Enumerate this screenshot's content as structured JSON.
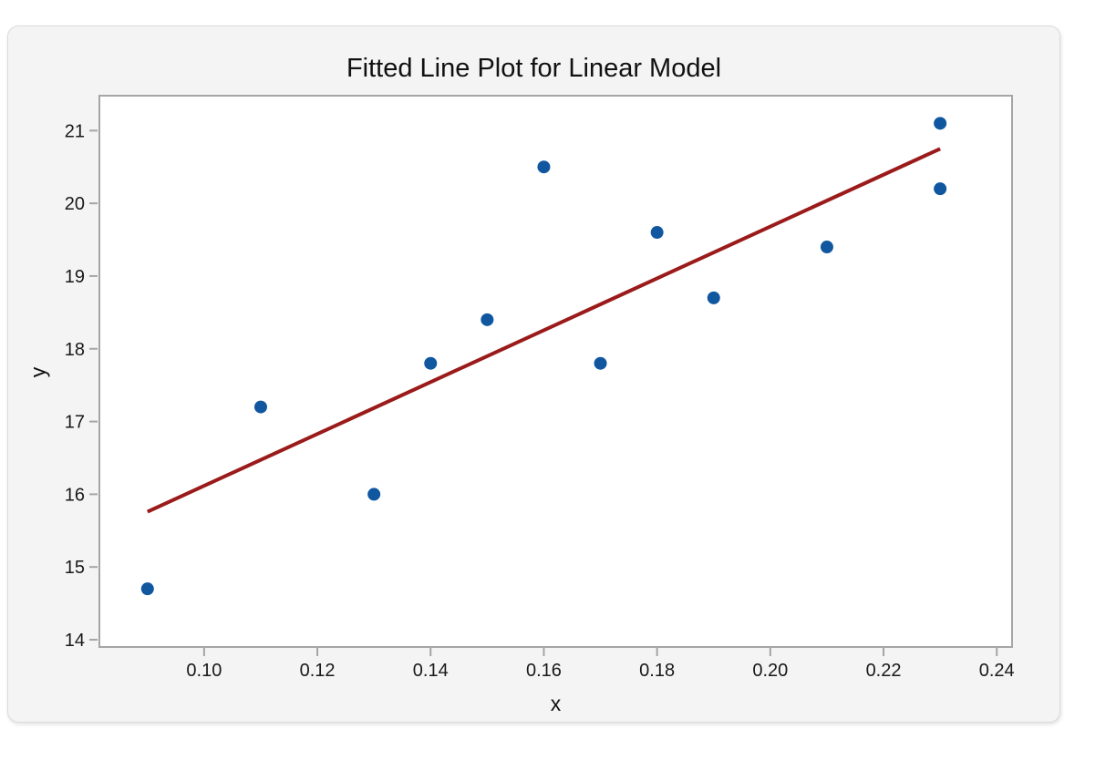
{
  "card": {
    "background": "#F4F4F4",
    "border_color": "#DBDBDB"
  },
  "chart_data": {
    "type": "scatter",
    "title": "Fitted Line Plot for Linear Model",
    "xlabel": "x",
    "ylabel": "y",
    "x_range": [
      0.0815,
      0.2427
    ],
    "y_range": [
      13.9,
      21.48
    ],
    "x_ticks": [
      0.1,
      0.12,
      0.14,
      0.16,
      0.18,
      0.2,
      0.22,
      0.24
    ],
    "x_tick_labels": [
      "0.10",
      "0.12",
      "0.14",
      "0.16",
      "0.18",
      "0.20",
      "0.22",
      "0.24"
    ],
    "y_ticks": [
      14,
      15,
      16,
      17,
      18,
      19,
      20,
      21
    ],
    "y_tick_labels": [
      "14",
      "15",
      "16",
      "17",
      "18",
      "19",
      "20",
      "21"
    ],
    "grid": false,
    "legend_position": "none",
    "series": [
      {
        "name": "observations",
        "type": "scatter",
        "color": "#1057A0",
        "points": [
          [
            0.09,
            14.7
          ],
          [
            0.11,
            17.2
          ],
          [
            0.13,
            16.0
          ],
          [
            0.14,
            17.8
          ],
          [
            0.15,
            18.4
          ],
          [
            0.16,
            20.5
          ],
          [
            0.17,
            17.8
          ],
          [
            0.18,
            19.6
          ],
          [
            0.19,
            18.7
          ],
          [
            0.21,
            19.4
          ],
          [
            0.23,
            21.1
          ],
          [
            0.23,
            20.2
          ]
        ]
      },
      {
        "name": "fitted-line",
        "type": "line",
        "color": "#9B1A1A",
        "points": [
          [
            0.09,
            15.76
          ],
          [
            0.23,
            20.75
          ]
        ]
      }
    ],
    "colors": {
      "point": "#1057A0",
      "fit_line": "#9B1A1A",
      "frame": "#A5A5A5",
      "plot_background": "#FFFFFF",
      "text": "#191919"
    }
  }
}
